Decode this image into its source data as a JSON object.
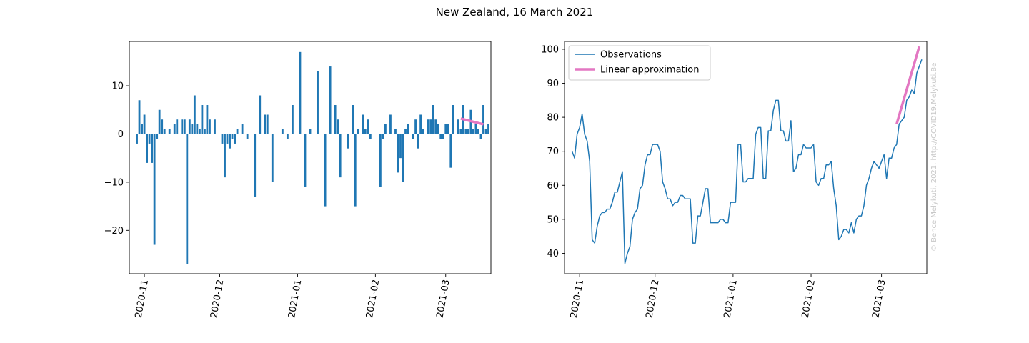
{
  "figure": {
    "title": "New Zealand, 16 March 2021",
    "watermark": "© Bence Melykuti, 2021. http://COVID19.Melykuti.Be"
  },
  "chart_data": [
    {
      "type": "bar",
      "title": "",
      "xlabel": "",
      "ylabel": "",
      "x_start": "2020-10-29",
      "x_end": "2021-03-16",
      "xlim": [
        "2020-10-26",
        "2021-03-19"
      ],
      "ylim": [
        -29,
        19.2
      ],
      "x_tick_dates": [
        "2020-11-01",
        "2020-12-01",
        "2021-01-01",
        "2021-02-01",
        "2021-03-01"
      ],
      "x_tick_labels": [
        "2020-11",
        "2020-12",
        "2021-01",
        "2021-02",
        "2021-03"
      ],
      "y_ticks": [
        10,
        0,
        -10,
        -20
      ],
      "y_tick_labels": [
        "10",
        "0",
        "−10",
        "−20"
      ],
      "bar_color": "#1f77b4",
      "values": [
        -2,
        7,
        2,
        4,
        -6,
        -2,
        -6,
        -23,
        -1,
        5,
        3,
        1,
        0,
        1,
        0,
        2,
        3,
        0,
        3,
        3,
        -27,
        3,
        2,
        8,
        2,
        1,
        6,
        1,
        6,
        3,
        0,
        3,
        0,
        0,
        -2,
        -9,
        -2,
        -3,
        -1,
        -2,
        1,
        0,
        2,
        0,
        -1,
        0,
        0,
        -13,
        0,
        8,
        0,
        4,
        4,
        0,
        -10,
        0,
        0,
        0,
        1,
        0,
        -1,
        0,
        6,
        0,
        0,
        17,
        0,
        -11,
        0,
        1,
        0,
        0,
        13,
        0,
        0,
        -15,
        0,
        14,
        0,
        6,
        3,
        -9,
        0,
        0,
        -3,
        0,
        6,
        -15,
        1,
        0,
        4,
        1,
        3,
        -1,
        0,
        0,
        0,
        -11,
        -1,
        2,
        0,
        4,
        0,
        1,
        -8,
        -5,
        -10,
        1,
        2,
        0,
        -1,
        3,
        -3,
        4,
        1,
        0,
        3,
        3,
        6,
        3,
        2,
        -1,
        -1,
        2,
        2,
        -7,
        6,
        0,
        3,
        1,
        6,
        1,
        1,
        5,
        1,
        2,
        1,
        -1,
        6,
        1,
        2
      ],
      "fit": {
        "name": "Linear approximation",
        "color": "#e377c2",
        "x": [
          "2021-03-07",
          "2021-03-16"
        ],
        "y": [
          3.2,
          2.0
        ]
      }
    },
    {
      "type": "line",
      "title": "",
      "xlabel": "",
      "ylabel": "",
      "x_start": "2020-10-29",
      "x_end": "2021-03-16",
      "xlim": [
        "2020-10-26",
        "2021-03-19"
      ],
      "ylim": [
        34,
        102.3
      ],
      "x_tick_dates": [
        "2020-11-01",
        "2020-12-01",
        "2021-01-01",
        "2021-02-01",
        "2021-03-01"
      ],
      "x_tick_labels": [
        "2020-11",
        "2020-12",
        "2021-01",
        "2021-02",
        "2021-03"
      ],
      "y_ticks": [
        100,
        90,
        80,
        70,
        60,
        50,
        40
      ],
      "y_tick_labels": [
        "100",
        "90",
        "80",
        "70",
        "60",
        "50",
        "40"
      ],
      "legend": {
        "position": "upper left"
      },
      "series": [
        {
          "name": "Observations",
          "color": "#1f77b4",
          "values": [
            70,
            68,
            75,
            77,
            81,
            75,
            73,
            67,
            44,
            43,
            48,
            51,
            52,
            52,
            53,
            53,
            55,
            58,
            58,
            61,
            64,
            37,
            40,
            42,
            50,
            52,
            53,
            59,
            60,
            66,
            69,
            69,
            72,
            72,
            72,
            70,
            61,
            59,
            56,
            56,
            54,
            55,
            55,
            57,
            57,
            56,
            56,
            56,
            43,
            43,
            51,
            51,
            55,
            59,
            59,
            49,
            49,
            49,
            49,
            50,
            50,
            49,
            49,
            55,
            55,
            55,
            72,
            72,
            61,
            61,
            62,
            62,
            62,
            75,
            77,
            77,
            62,
            62,
            76,
            76,
            82,
            85,
            85,
            76,
            76,
            73,
            73,
            79,
            64,
            65,
            69,
            69,
            72,
            71,
            71,
            71,
            72,
            61,
            60,
            62,
            62,
            66,
            66,
            67,
            59,
            54,
            44,
            45,
            47,
            47,
            46,
            49,
            46,
            50,
            51,
            51,
            54,
            60,
            62,
            65,
            67,
            66,
            65,
            67,
            69,
            62,
            68,
            68,
            71,
            72,
            78,
            79,
            80,
            85,
            86,
            88,
            87,
            93,
            95,
            97
          ]
        },
        {
          "name": "Linear approximation",
          "color": "#e377c2",
          "x": [
            "2021-03-07",
            "2021-03-16"
          ],
          "values": [
            78,
            100.8
          ]
        }
      ]
    }
  ]
}
